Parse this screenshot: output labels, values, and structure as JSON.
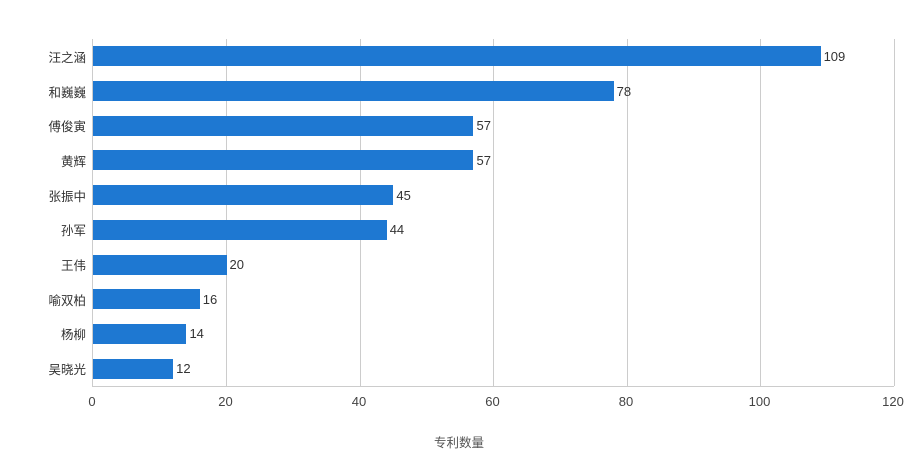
{
  "chart_data": {
    "type": "bar",
    "orientation": "horizontal",
    "title": "",
    "xlabel": "专利数量",
    "ylabel": "",
    "xlim": [
      0,
      120
    ],
    "x_ticks": [
      0,
      20,
      40,
      60,
      80,
      100,
      120
    ],
    "categories": [
      "汪之涵",
      "和巍巍",
      "傅俊寅",
      "黄辉",
      "张振中",
      "孙军",
      "王伟",
      "喻双柏",
      "杨柳",
      "吴晓光"
    ],
    "values": [
      109,
      78,
      57,
      57,
      45,
      44,
      20,
      16,
      14,
      12
    ],
    "grid": true,
    "legend": "none",
    "colors": {
      "bar": "#1e78d2",
      "gridline": "#cccccc",
      "axis_line": "#cccccc",
      "category_label": "#333333",
      "tick_label": "#444444",
      "value_label": "#333333",
      "axis_title": "#555555",
      "background": "#ffffff"
    }
  }
}
